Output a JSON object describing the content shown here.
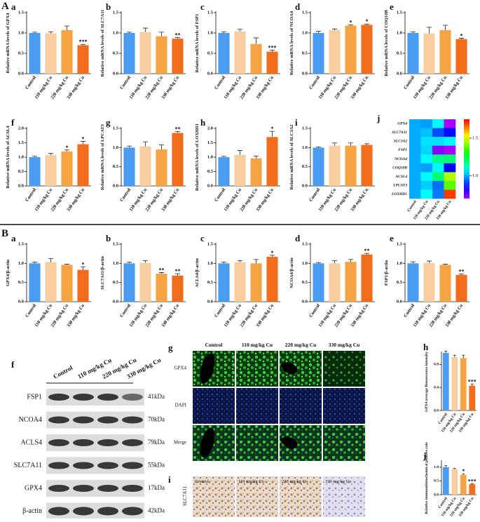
{
  "sections": [
    "A",
    "B"
  ],
  "chart_data": [
    {
      "type": "bar",
      "label": "a",
      "ylabel": "Relative mRNA levels of GPX4",
      "categories": [
        "Control",
        "110 mg/kg Cu",
        "220 mg/kg Cu",
        "330 mg/kg Cu"
      ],
      "values": [
        1.0,
        0.99,
        1.07,
        0.7
      ],
      "errors": [
        0.02,
        0.04,
        0.1,
        0.02
      ],
      "significance": [
        null,
        null,
        null,
        "***"
      ],
      "colors": [
        "#4a9bf2",
        "#f8cda0",
        "#f6a343",
        "#f36c1c"
      ],
      "ylim": [
        0,
        1.5
      ],
      "yticks": [
        {
          "value": 0,
          "label": "0.0"
        },
        0.5,
        {
          "value": 1,
          "label": "1.0"
        },
        1.5
      ]
    },
    {
      "type": "bar",
      "label": "b",
      "ylabel": "Relative mRNA levels of SLC7A11",
      "categories": [
        "Control",
        "110 mg/kg Cu",
        "220 mg/kg Cu",
        "330 mg/kg Cu"
      ],
      "values": [
        1.0,
        1.02,
        0.92,
        0.86
      ],
      "errors": [
        0.02,
        0.1,
        0.1,
        0.03
      ],
      "significance": [
        null,
        null,
        null,
        "**"
      ],
      "colors": [
        "#4a9bf2",
        "#f8cda0",
        "#f6a343",
        "#f36c1c"
      ],
      "ylim": [
        0,
        1.5
      ],
      "yticks": [
        {
          "value": 0,
          "label": "0.0"
        },
        0.5,
        {
          "value": 1,
          "label": "1.0"
        },
        1.5
      ]
    },
    {
      "type": "bar",
      "label": "c",
      "ylabel": "Relative mRNA levels of FSP1",
      "categories": [
        "Control",
        "110 mg/kg Cu",
        "220 mg/kg Cu",
        "330 mg/kg Cu"
      ],
      "values": [
        1.0,
        1.04,
        0.73,
        0.54
      ],
      "errors": [
        0.03,
        0.05,
        0.15,
        0.04
      ],
      "significance": [
        null,
        null,
        null,
        "***"
      ],
      "colors": [
        "#4a9bf2",
        "#f8cda0",
        "#f6a343",
        "#f36c1c"
      ],
      "ylim": [
        0,
        1.5
      ],
      "yticks": [
        {
          "value": 0,
          "label": "0.0"
        },
        0.5,
        {
          "value": 1,
          "label": "1.0"
        },
        1.5
      ]
    },
    {
      "type": "bar",
      "label": "d",
      "ylabel": "Relative mRNA levels of NCOA4",
      "categories": [
        "Control",
        "110 mg/kg Cu",
        "220 mg/kg Cu",
        "330 mg/kg Cu"
      ],
      "values": [
        1.0,
        1.07,
        1.18,
        1.2
      ],
      "errors": [
        0.04,
        0.03,
        0.02,
        0.02
      ],
      "significance": [
        null,
        null,
        "*",
        "*"
      ],
      "colors": [
        "#4a9bf2",
        "#f8cda0",
        "#f6a343",
        "#f36c1c"
      ],
      "ylim": [
        0,
        1.5
      ],
      "yticks": [
        {
          "value": 0,
          "label": "0.0"
        },
        0.5,
        {
          "value": 1,
          "label": "1.0"
        },
        1.5
      ]
    },
    {
      "type": "bar",
      "label": "e",
      "ylabel": "Relative mRNA levels of COQ10B",
      "categories": [
        "Control",
        "110 mg/kg Cu",
        "220 mg/kg Cu",
        "330 mg/kg Cu"
      ],
      "values": [
        1.0,
        0.99,
        1.07,
        0.85
      ],
      "errors": [
        0.03,
        0.15,
        0.12,
        0.02
      ],
      "significance": [
        null,
        null,
        null,
        "*"
      ],
      "colors": [
        "#4a9bf2",
        "#f8cda0",
        "#f6a343",
        "#f36c1c"
      ],
      "ylim": [
        0,
        1.5
      ],
      "yticks": [
        {
          "value": 0,
          "label": "0.0"
        },
        0.5,
        {
          "value": 1,
          "label": "1.0"
        },
        1.5
      ]
    },
    {
      "type": "bar",
      "label": "f",
      "ylabel": "Relative mRNA levels of ACSL4",
      "categories": [
        "Control",
        "110 mg/kg Cu",
        "220 mg/kg Cu",
        "330 mg/kg Cu"
      ],
      "values": [
        1.0,
        1.07,
        1.2,
        1.45
      ],
      "errors": [
        0.03,
        0.06,
        0.05,
        0.1
      ],
      "significance": [
        null,
        null,
        "*",
        "*"
      ],
      "colors": [
        "#4a9bf2",
        "#f8cda0",
        "#f6a343",
        "#f36c1c"
      ],
      "ylim": [
        0,
        2.0
      ],
      "yticks": [
        {
          "value": 0,
          "label": "0.0"
        },
        0.5,
        {
          "value": 1,
          "label": "1.0"
        },
        1.5,
        {
          "value": 2,
          "label": "2.0"
        }
      ]
    },
    {
      "type": "bar",
      "label": "g",
      "ylabel": "Relative mRNA levels of LPCAT3",
      "categories": [
        "Control",
        "110 mg/kg Cu",
        "220 mg/kg Cu",
        "330 mg/kg Cu"
      ],
      "values": [
        1.0,
        1.03,
        0.95,
        1.38
      ],
      "errors": [
        0.04,
        0.12,
        0.12,
        0.04
      ],
      "significance": [
        null,
        null,
        null,
        "**"
      ],
      "colors": [
        "#4a9bf2",
        "#f8cda0",
        "#f6a343",
        "#f36c1c"
      ],
      "ylim": [
        0,
        1.5
      ],
      "yticks": [
        {
          "value": 0,
          "label": "0.0"
        },
        0.5,
        {
          "value": 1,
          "label": "1.0"
        },
        1.5
      ]
    },
    {
      "type": "bar",
      "label": "h",
      "ylabel": "Relative mRNA levels of LOXHD1",
      "categories": [
        "Control",
        "110 mg/kg Cu",
        "220 mg/kg Cu",
        "330 mg/kg Cu"
      ],
      "values": [
        1.0,
        1.08,
        0.96,
        1.7
      ],
      "errors": [
        0.03,
        0.15,
        0.08,
        0.2
      ],
      "significance": [
        null,
        null,
        null,
        "*"
      ],
      "colors": [
        "#4a9bf2",
        "#f8cda0",
        "#f6a343",
        "#f36c1c"
      ],
      "ylim": [
        0,
        2.0
      ],
      "yticks": [
        {
          "value": 0,
          "label": "0.0"
        },
        0.5,
        {
          "value": 1,
          "label": "1.0"
        },
        1.5,
        {
          "value": 2,
          "label": "2.0"
        }
      ]
    },
    {
      "type": "bar",
      "label": "i",
      "ylabel": "Relative mRNA levels of SLC3A2",
      "categories": [
        "Control",
        "110 mg/kg Cu",
        "220 mg/kg Cu",
        "330 mg/kg Cu"
      ],
      "values": [
        1.0,
        1.05,
        1.05,
        1.07
      ],
      "errors": [
        0.02,
        0.07,
        0.07,
        0.03
      ],
      "significance": [
        null,
        null,
        null,
        null
      ],
      "colors": [
        "#4a9bf2",
        "#f8cda0",
        "#f6a343",
        "#f36c1c"
      ],
      "ylim": [
        0,
        1.5
      ],
      "yticks": [
        {
          "value": 0,
          "label": "0.0"
        },
        0.5,
        {
          "value": 1,
          "label": "1.0"
        },
        1.5
      ]
    },
    {
      "type": "heatmap",
      "label": "j",
      "rows": [
        "GPX4",
        "SLC7A11",
        "SLC3A2",
        "FSP1",
        "NCOA4",
        "COQ10B",
        "ACSL4",
        "LPCAT3",
        "LOXHD1"
      ],
      "columns": [
        "Control",
        "110 mg/kg Cu",
        "220 mg/kg Cu",
        "330 mg/kg Cu"
      ],
      "values": [
        [
          1.0,
          0.99,
          1.07,
          0.7
        ],
        [
          1.0,
          1.02,
          0.92,
          0.86
        ],
        [
          1.0,
          1.05,
          1.05,
          1.07
        ],
        [
          1.0,
          1.04,
          0.73,
          0.54
        ],
        [
          1.0,
          1.07,
          1.18,
          1.2
        ],
        [
          1.0,
          0.99,
          1.07,
          0.85
        ],
        [
          1.0,
          1.07,
          1.2,
          1.45
        ],
        [
          1.0,
          1.03,
          0.95,
          1.38
        ],
        [
          1.0,
          1.08,
          0.96,
          1.7
        ]
      ],
      "clim": [
        0.7,
        1.75
      ],
      "cticks": [
        1.5,
        {
          "value": 1,
          "label": "1.0"
        }
      ]
    },
    {
      "type": "bar",
      "label": "a",
      "ylabel": "GPX4/β-actin",
      "categories": [
        "Control",
        "110 mg/kg Cu",
        "220 mg/kg Cu",
        "330 mg/kg Cu"
      ],
      "values": [
        1.0,
        1.03,
        0.96,
        0.83
      ],
      "errors": [
        0.03,
        0.1,
        0.02,
        0.08
      ],
      "significance": [
        null,
        null,
        null,
        "*"
      ],
      "colors": [
        "#4a9bf2",
        "#f8cda0",
        "#f6a343",
        "#f36c1c"
      ],
      "ylim": [
        0,
        1.5
      ],
      "yticks": [
        {
          "value": 0,
          "label": "0.0"
        },
        0.5,
        {
          "value": 1,
          "label": "1.0"
        },
        1.5
      ]
    },
    {
      "type": "bar",
      "label": "b",
      "ylabel": "SLC7A11/β-actin",
      "categories": [
        "Control",
        "110 mg/kg Cu",
        "220 mg/kg Cu",
        "330 mg/kg Cu"
      ],
      "values": [
        1.0,
        1.01,
        0.73,
        0.68
      ],
      "errors": [
        0.03,
        0.06,
        0.03,
        0.05
      ],
      "significance": [
        null,
        null,
        "**",
        "**"
      ],
      "colors": [
        "#4a9bf2",
        "#f8cda0",
        "#f6a343",
        "#f36c1c"
      ],
      "ylim": [
        0,
        1.5
      ],
      "yticks": [
        {
          "value": 0,
          "label": "0.0"
        },
        0.5,
        {
          "value": 1,
          "label": "1.0"
        },
        1.5
      ]
    },
    {
      "type": "bar",
      "label": "c",
      "ylabel": "ACLS4/β-actin",
      "categories": [
        "Control",
        "110 mg/kg Cu",
        "220 mg/kg Cu",
        "330 mg/kg Cu"
      ],
      "values": [
        1.0,
        1.03,
        1.0,
        1.17
      ],
      "errors": [
        0.03,
        0.04,
        0.1,
        0.04
      ],
      "significance": [
        null,
        null,
        null,
        "*"
      ],
      "colors": [
        "#4a9bf2",
        "#f8cda0",
        "#f6a343",
        "#f36c1c"
      ],
      "ylim": [
        0,
        1.5
      ],
      "yticks": [
        {
          "value": 0,
          "label": "0.0"
        },
        0.5,
        {
          "value": 1,
          "label": "1.0"
        },
        1.5
      ]
    },
    {
      "type": "bar",
      "label": "d",
      "ylabel": "NCOA4/β-actin",
      "categories": [
        "Control",
        "110 mg/kg Cu",
        "220 mg/kg Cu",
        "330 mg/kg Cu"
      ],
      "values": [
        1.0,
        1.0,
        1.04,
        1.23
      ],
      "errors": [
        0.02,
        0.07,
        0.06,
        0.03
      ],
      "significance": [
        null,
        null,
        null,
        "**"
      ],
      "colors": [
        "#4a9bf2",
        "#f8cda0",
        "#f6a343",
        "#f36c1c"
      ],
      "ylim": [
        0,
        1.5
      ],
      "yticks": [
        {
          "value": 0,
          "label": "0.0"
        },
        0.5,
        {
          "value": 1,
          "label": "1.0"
        },
        1.5
      ]
    },
    {
      "type": "bar",
      "label": "e",
      "ylabel": "FSP1/β-actin",
      "categories": [
        "Control",
        "110 mg/kg Cu",
        "220 mg/kg Cu",
        "330 mg/kg Cu"
      ],
      "values": [
        1.0,
        1.01,
        0.96,
        0.7
      ],
      "errors": [
        0.04,
        0.05,
        0.02,
        0.02
      ],
      "significance": [
        null,
        null,
        null,
        "**"
      ],
      "colors": [
        "#4a9bf2",
        "#f8cda0",
        "#f6a343",
        "#f36c1c"
      ],
      "ylim": [
        0,
        1.5
      ],
      "yticks": [
        {
          "value": 0,
          "label": "0.0"
        },
        0.5,
        {
          "value": 1,
          "label": "1.0"
        },
        1.5
      ]
    },
    {
      "type": "bar",
      "label": "h",
      "ylabel": "GPX4 average fluorescence intensity",
      "categories": [
        "Control",
        "110 mg/kg Cu",
        "220 mg/kg Cu",
        "330 mg/kg Cu"
      ],
      "values": [
        1.0,
        0.93,
        0.91,
        0.43
      ],
      "errors": [
        0.03,
        0.03,
        0.05,
        0.03
      ],
      "significance": [
        null,
        null,
        null,
        "***"
      ],
      "colors": [
        "#4a9bf2",
        "#f8cda0",
        "#f6a343",
        "#f36c1c"
      ],
      "ylim": [
        0,
        1.0
      ],
      "yticks": [
        {
          "value": 0,
          "label": "0.0"
        },
        0.4,
        0.8
      ]
    },
    {
      "type": "bar",
      "label": "j",
      "ylabel": "Relative immunohistochemical positive rate",
      "categories": [
        "Control",
        "110 mg/kg Cu",
        "220 mg/kg Cu",
        "330 mg/kg Cu"
      ],
      "values": [
        1.0,
        0.92,
        0.72,
        0.38
      ],
      "errors": [
        0.06,
        0.04,
        0.04,
        0.02
      ],
      "significance": [
        null,
        null,
        "*",
        "***"
      ],
      "colors": [
        "#4a9bf2",
        "#f8cda0",
        "#f6a343",
        "#f36c1c"
      ],
      "ylim": [
        0,
        1.2
      ],
      "yticks": [
        {
          "value": 0,
          "label": "0.0"
        },
        0.5,
        {
          "value": 1,
          "label": "1.0"
        }
      ]
    }
  ],
  "western_blot": {
    "label": "f",
    "columns": [
      "Control",
      "110 mg/kg Cu",
      "220 mg/kg Cu",
      "330 mg/kg Cu"
    ],
    "rows": [
      {
        "name": "FSP1",
        "size": "41kDa"
      },
      {
        "name": "NCOA4",
        "size": "70kDa"
      },
      {
        "name": "ACLS4",
        "size": "79kDa"
      },
      {
        "name": "SLC7A11",
        "size": "55kDa"
      },
      {
        "name": "GPX4",
        "size": "17kDa"
      },
      {
        "name": "β-actin",
        "size": "42kDa"
      }
    ]
  },
  "fluorescence": {
    "label": "g",
    "columns": [
      "Control",
      "110 mg/kg Cu",
      "220 mg/kg Cu",
      "330 mg/kg Cu"
    ],
    "rows": [
      "GPX4",
      "DAPI",
      "Merge"
    ]
  },
  "ihc": {
    "label": "i",
    "row": "SLC7A11",
    "columns": [
      "Control",
      "110 mg/kg Cu",
      "220 mg/kg Cu",
      "330 mg/kg Cu"
    ]
  }
}
